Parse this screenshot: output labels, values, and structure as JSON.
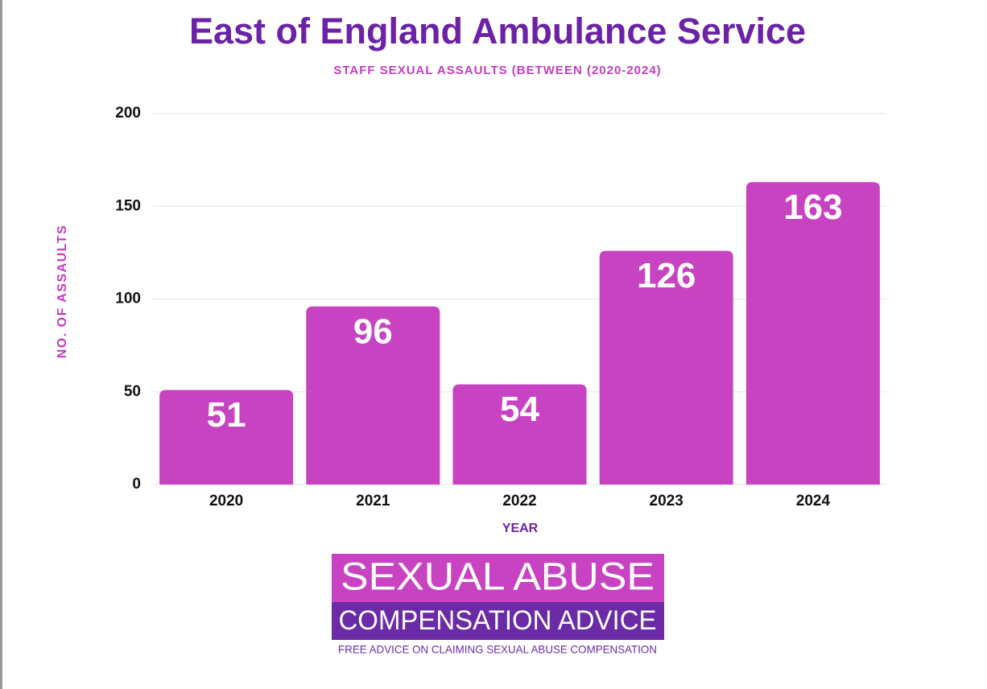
{
  "chart_data": {
    "type": "bar",
    "title": "East of England Ambulance Service",
    "subtitle": "STAFF SEXUAL ASSAULTS (BETWEEN (2020-2024)",
    "x_label": "YEAR",
    "y_label": "NO. OF ASSAULTS",
    "categories": [
      "2020",
      "2021",
      "2022",
      "2023",
      "2024"
    ],
    "values": [
      51,
      96,
      54,
      126,
      163
    ],
    "color": "#c843c1",
    "ylim": [
      0,
      200
    ],
    "yticks": [
      0,
      50,
      100,
      150,
      200
    ],
    "grid": true
  },
  "logo": {
    "line1": "SEXUAL ABUSE",
    "line2": "COMPENSATION ADVICE",
    "tagline": "FREE ADVICE ON CLAIMING SEXUAL ABUSE COMPENSATION"
  }
}
